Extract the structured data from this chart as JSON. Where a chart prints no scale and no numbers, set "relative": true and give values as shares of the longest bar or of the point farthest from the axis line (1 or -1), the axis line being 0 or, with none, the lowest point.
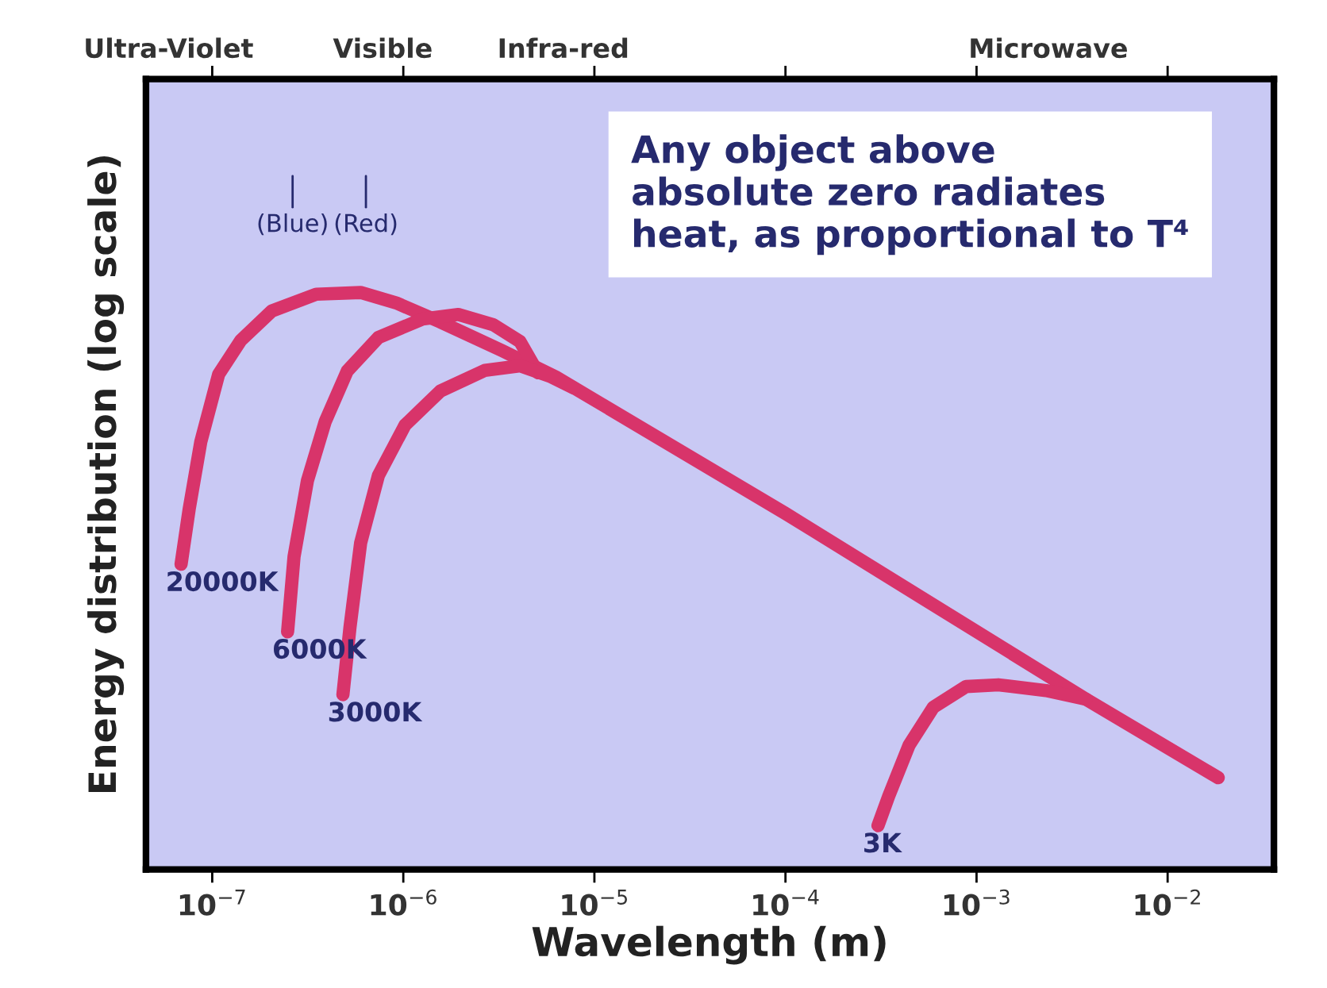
{
  "chart_data": {
    "type": "line",
    "relative": true,
    "log": "x",
    "xlabel": "Wavelength (m)",
    "ylabel": "Energy distribution (log scale)",
    "xlim": [
      4.5e-08,
      0.036
    ],
    "xticks": [
      {
        "value": 1e-07,
        "label": "10$^{−7}$"
      },
      {
        "value": 1e-06,
        "label": "10$^{−6}$"
      },
      {
        "value": 1e-05,
        "label": "10$^{−5}$"
      },
      {
        "value": 0.0001,
        "label": "10$^{−4}$"
      },
      {
        "value": 0.001,
        "label": "10$^{−3}$"
      },
      {
        "value": 0.01,
        "label": "10$^{−2}$"
      }
    ],
    "grid": false,
    "series": [
      {
        "name": "20000K",
        "color": "#d8346a",
        "x": [
          6.87e-08,
          7.57e-08,
          8.71e-08,
          1.08e-07,
          1.41e-07,
          2.05e-07,
          3.5e-07,
          5.98e-07,
          9.18e-07,
          1.56e-06,
          3.3e-06,
          6.25e-06,
          0.0001,
          0.00374,
          0.0184
        ],
        "values": [
          0.529,
          0.624,
          0.741,
          0.858,
          0.917,
          0.968,
          0.997,
          1.0,
          0.982,
          0.949,
          0.899,
          0.854,
          0.617,
          0.295,
          0.159
        ]
      },
      {
        "name": "6000K",
        "color": "#d8346a",
        "x": [
          2.48e-07,
          2.68e-07,
          3.15e-07,
          3.9e-07,
          5.09e-07,
          7.41e-07,
          1.26e-06,
          1.94e-06,
          2.96e-06,
          4.08e-06,
          5.06e-06
        ],
        "values": [
          0.412,
          0.542,
          0.674,
          0.776,
          0.864,
          0.922,
          0.954,
          0.962,
          0.944,
          0.915,
          0.861
        ]
      },
      {
        "name": "3000K",
        "color": "#d8346a",
        "x": [
          4.83e-07,
          5.26e-07,
          5.98e-07,
          7.41e-07,
          1.02e-06,
          1.56e-06,
          2.67e-06,
          4.08e-06,
          5.93e-06,
          7.74e-06
        ],
        "values": [
          0.303,
          0.42,
          0.566,
          0.683,
          0.77,
          0.829,
          0.865,
          0.873,
          0.854,
          0.835
        ]
      },
      {
        "name": "3K",
        "color": "#d8346a",
        "x": [
          0.000305,
          0.000347,
          0.000443,
          0.000594,
          0.000881,
          0.0013,
          0.00231,
          0.00374
        ],
        "values": [
          0.076,
          0.127,
          0.215,
          0.281,
          0.317,
          0.32,
          0.31,
          0.295
        ]
      }
    ],
    "annotations": [
      "Ultra-Violet",
      "Visible",
      "Infra-red",
      "Microwave",
      "(Blue)",
      "(Red)",
      "Any object above\nabsolute zero radiates\nheat, as proportional to T⁴"
    ]
  }
}
